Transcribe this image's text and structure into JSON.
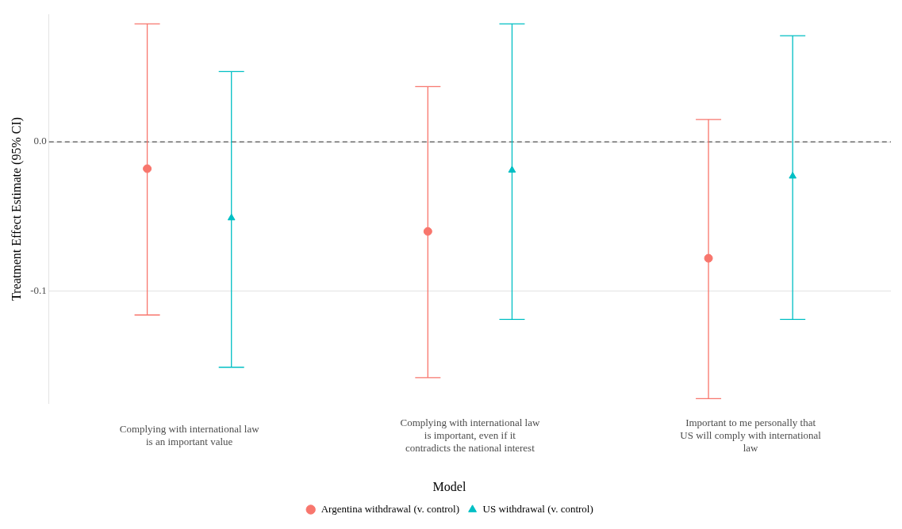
{
  "chart_data": {
    "type": "scatter",
    "ylabel": "Treatment Effect Estimate (95% CI)",
    "categories": [
      "Complying with international law is an important value",
      "Complying with international law is important, even if it contradicts the national interest",
      "Important to me personally that US will comply with international law"
    ],
    "series": [
      {
        "name": "Argentina withdrawal (v. control)",
        "color": "#f8766d",
        "marker": "circle",
        "values": [
          -0.018,
          -0.06,
          -0.078
        ],
        "errors": [
          [
            -0.116,
            0.079
          ],
          [
            -0.158,
            0.037
          ],
          [
            -0.172,
            0.015
          ]
        ]
      },
      {
        "name": "US withdrawal (v. control)",
        "color": "#00bfc4",
        "marker": "triangle",
        "values": [
          -0.051,
          -0.019,
          -0.023
        ],
        "errors": [
          [
            -0.151,
            0.047
          ],
          [
            -0.119,
            0.079
          ],
          [
            -0.119,
            0.071
          ]
        ]
      }
    ],
    "ylim": [
      -0.175,
      0.085
    ],
    "yticks": [
      {
        "value": -0.1,
        "label": "-0.1"
      },
      {
        "value": 0,
        "label": "0.0"
      }
    ],
    "ref_lines": [
      {
        "axis": "y",
        "value": 0,
        "color": "#555555",
        "line_style": "dashed"
      }
    ],
    "grid": "y",
    "legend": "bottom",
    "legend_title": "Model"
  }
}
